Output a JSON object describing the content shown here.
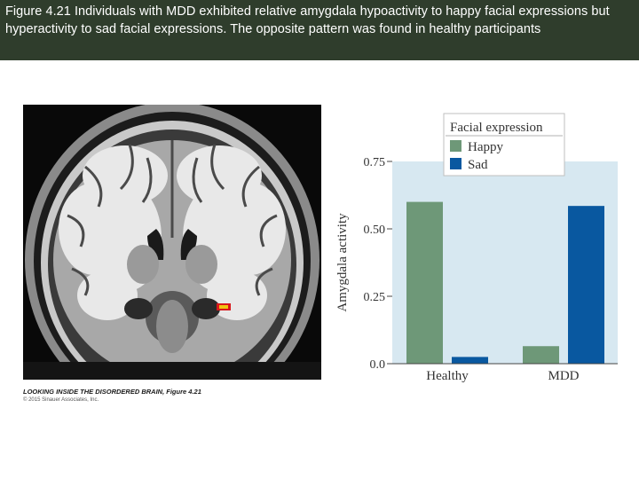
{
  "caption": "Figure 4.21 Individuals with MDD exhibited relative amygdala hypoactivity to happy facial expressions but hyperactivity to sad facial expressions. The opposite pattern was found in healthy participants",
  "credit": {
    "title": "LOOKING INSIDE THE DISORDERED BRAIN, Figure 4.21",
    "copyright": "© 2015 Sinauer Associates, Inc."
  },
  "brain_image": {
    "icon": "mri-coronal-brain-icon",
    "highlight_color": "#e0a400"
  },
  "chart_data": {
    "type": "bar",
    "ylabel": "Amygdala activity",
    "xlabel": "",
    "ylim": [
      0,
      0.75
    ],
    "yticks": [
      0.0,
      0.25,
      0.5,
      0.75
    ],
    "ytick_labels": [
      "0.0",
      "0.25",
      "0.50",
      "0.75"
    ],
    "categories": [
      "Healthy",
      "MDD"
    ],
    "legend": {
      "title": "Facial expression",
      "placement": "top"
    },
    "series": [
      {
        "name": "Happy",
        "values": [
          0.6,
          0.065
        ],
        "color": "#6e9878"
      },
      {
        "name": "Sad",
        "values": [
          0.025,
          0.585
        ],
        "color": "#0958a0"
      }
    ],
    "plot_background": "#d7e8f1",
    "grid": false
  }
}
